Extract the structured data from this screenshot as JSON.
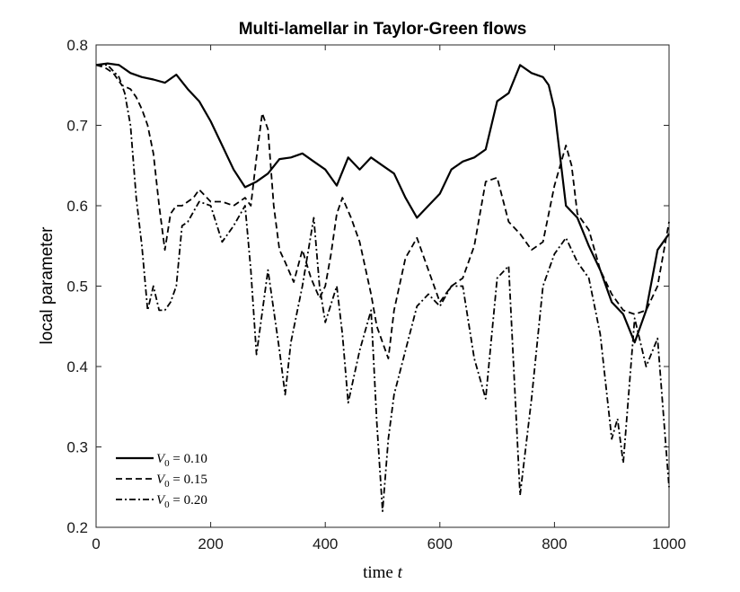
{
  "chart_data": {
    "type": "line",
    "title": "Multi-lamellar in Taylor-Green flows",
    "xlabel": {
      "text": "time ",
      "var": "t"
    },
    "ylabel": "local parameter",
    "xlim": [
      0,
      1000
    ],
    "ylim": [
      0.2,
      0.8
    ],
    "xticks": [
      0,
      200,
      400,
      600,
      800,
      1000
    ],
    "yticks": [
      0.2,
      0.3,
      0.4,
      0.5,
      0.6,
      0.7,
      0.8
    ],
    "xtick_labels": [
      "0",
      "200",
      "400",
      "600",
      "800",
      "1000"
    ],
    "ytick_labels": [
      "0.2",
      "0.3",
      "0.4",
      "0.5",
      "0.6",
      "0.7",
      "0.8"
    ],
    "grid": false,
    "legend_position": "bottom-left",
    "series": [
      {
        "name": "V0 = 0.10",
        "legend_var": "V",
        "legend_sub": "0",
        "legend_rest": " = 0.10",
        "style": "solid",
        "color": "#000000",
        "x": [
          0,
          20,
          40,
          60,
          80,
          100,
          120,
          140,
          160,
          180,
          200,
          220,
          240,
          260,
          280,
          300,
          320,
          340,
          360,
          380,
          400,
          420,
          440,
          460,
          480,
          500,
          520,
          540,
          560,
          580,
          600,
          620,
          640,
          660,
          680,
          700,
          720,
          740,
          760,
          780,
          790,
          800,
          810,
          820,
          840,
          860,
          880,
          900,
          920,
          940,
          960,
          980,
          1000
        ],
        "y": [
          0.775,
          0.777,
          0.775,
          0.765,
          0.76,
          0.757,
          0.753,
          0.763,
          0.745,
          0.73,
          0.705,
          0.675,
          0.645,
          0.623,
          0.63,
          0.64,
          0.658,
          0.66,
          0.665,
          0.655,
          0.645,
          0.625,
          0.66,
          0.645,
          0.66,
          0.65,
          0.64,
          0.61,
          0.585,
          0.6,
          0.615,
          0.645,
          0.655,
          0.66,
          0.67,
          0.73,
          0.74,
          0.775,
          0.765,
          0.76,
          0.75,
          0.72,
          0.66,
          0.6,
          0.585,
          0.55,
          0.52,
          0.48,
          0.465,
          0.43,
          0.47,
          0.545,
          0.565
        ]
      },
      {
        "name": "V0 = 0.15",
        "legend_var": "V",
        "legend_sub": "0",
        "legend_rest": " = 0.15",
        "style": "dashed",
        "color": "#000000",
        "x": [
          0,
          15,
          30,
          45,
          60,
          70,
          80,
          90,
          100,
          110,
          120,
          130,
          140,
          150,
          160,
          170,
          180,
          200,
          220,
          240,
          260,
          270,
          280,
          290,
          300,
          310,
          320,
          330,
          345,
          360,
          375,
          390,
          400,
          410,
          420,
          430,
          445,
          460,
          480,
          490,
          500,
          510,
          520,
          540,
          560,
          580,
          600,
          620,
          640,
          660,
          680,
          700,
          720,
          740,
          760,
          780,
          800,
          820,
          830,
          840,
          860,
          880,
          900,
          920,
          940,
          960,
          980,
          1000
        ],
        "y": [
          0.775,
          0.772,
          0.765,
          0.75,
          0.745,
          0.735,
          0.72,
          0.7,
          0.665,
          0.6,
          0.545,
          0.59,
          0.6,
          0.6,
          0.605,
          0.61,
          0.62,
          0.605,
          0.605,
          0.6,
          0.61,
          0.6,
          0.66,
          0.715,
          0.695,
          0.6,
          0.545,
          0.53,
          0.505,
          0.545,
          0.51,
          0.485,
          0.5,
          0.54,
          0.59,
          0.61,
          0.585,
          0.555,
          0.49,
          0.45,
          0.43,
          0.41,
          0.47,
          0.535,
          0.56,
          0.52,
          0.48,
          0.5,
          0.51,
          0.55,
          0.63,
          0.635,
          0.58,
          0.565,
          0.545,
          0.555,
          0.625,
          0.675,
          0.65,
          0.59,
          0.57,
          0.52,
          0.49,
          0.47,
          0.465,
          0.47,
          0.5,
          0.58
        ]
      },
      {
        "name": "V0 = 0.20",
        "legend_var": "V",
        "legend_sub": "0",
        "legend_rest": " = 0.20",
        "style": "dashdot",
        "color": "#000000",
        "x": [
          0,
          20,
          40,
          50,
          60,
          70,
          80,
          90,
          100,
          110,
          120,
          130,
          140,
          150,
          160,
          180,
          200,
          220,
          240,
          260,
          270,
          280,
          300,
          320,
          330,
          340,
          360,
          380,
          390,
          400,
          420,
          430,
          440,
          460,
          480,
          490,
          500,
          510,
          520,
          540,
          560,
          580,
          600,
          620,
          640,
          660,
          680,
          700,
          720,
          740,
          760,
          780,
          800,
          820,
          840,
          860,
          880,
          900,
          910,
          920,
          940,
          960,
          980,
          1000
        ],
        "y": [
          0.775,
          0.775,
          0.76,
          0.74,
          0.7,
          0.61,
          0.55,
          0.47,
          0.5,
          0.47,
          0.47,
          0.48,
          0.5,
          0.575,
          0.58,
          0.605,
          0.6,
          0.555,
          0.575,
          0.6,
          0.52,
          0.415,
          0.52,
          0.42,
          0.365,
          0.43,
          0.5,
          0.585,
          0.5,
          0.455,
          0.5,
          0.44,
          0.355,
          0.42,
          0.47,
          0.33,
          0.22,
          0.31,
          0.365,
          0.42,
          0.475,
          0.49,
          0.475,
          0.5,
          0.5,
          0.41,
          0.36,
          0.51,
          0.525,
          0.24,
          0.36,
          0.5,
          0.54,
          0.56,
          0.53,
          0.51,
          0.44,
          0.31,
          0.335,
          0.28,
          0.46,
          0.4,
          0.435,
          0.25
        ]
      }
    ]
  }
}
